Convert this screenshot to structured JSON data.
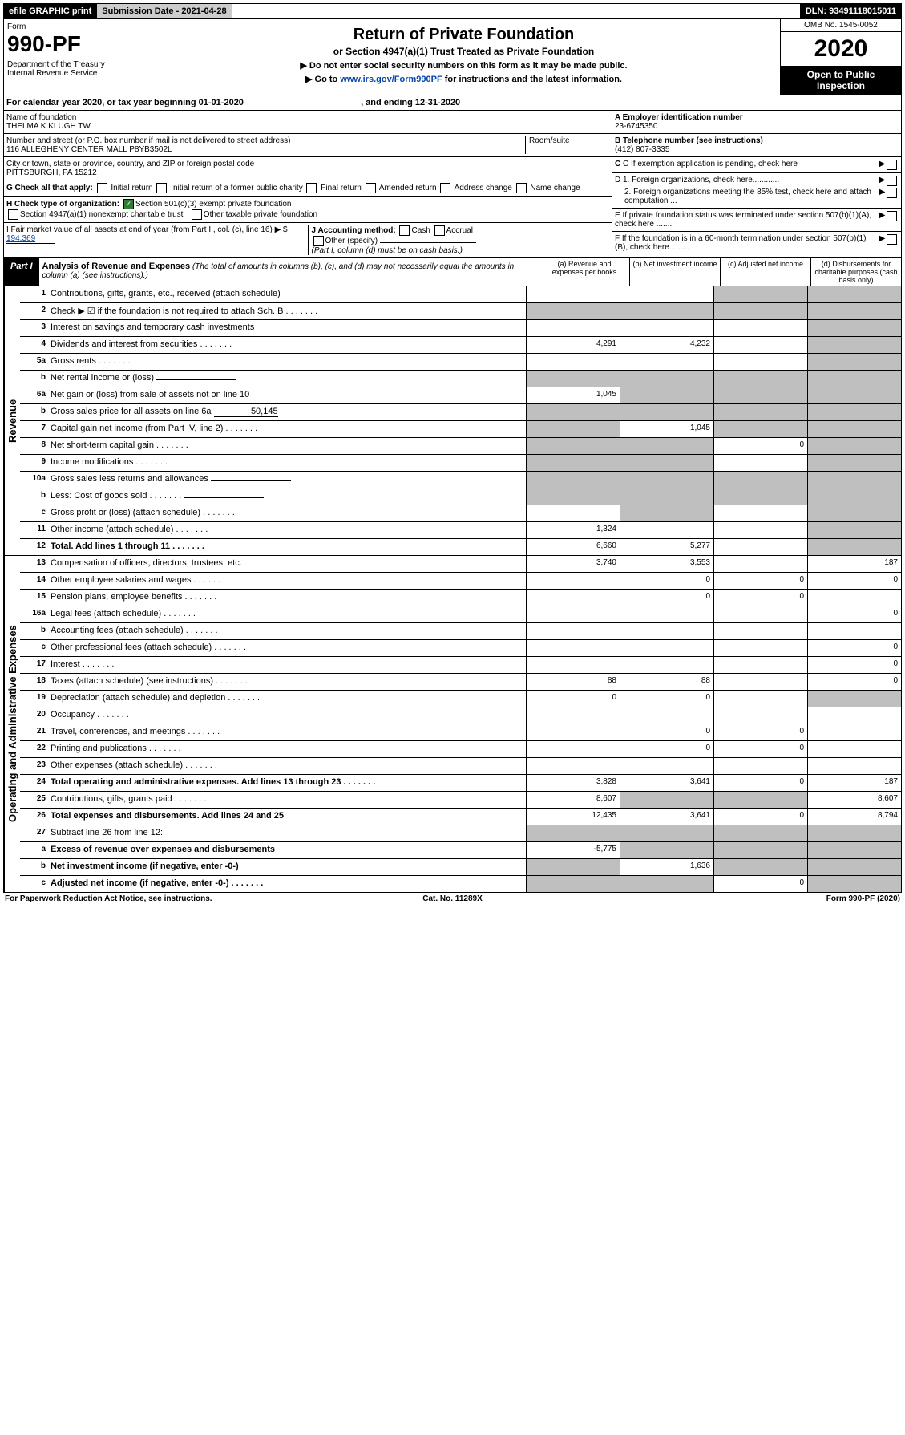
{
  "top": {
    "efile": "efile GRAPHIC print",
    "subdate_lbl": "Submission Date - 2021-04-28",
    "dln": "DLN: 93491118015011"
  },
  "header": {
    "form": "Form",
    "formnum": "990-PF",
    "dept": "Department of the Treasury\nInternal Revenue Service",
    "title": "Return of Private Foundation",
    "subtitle": "or Section 4947(a)(1) Trust Treated as Private Foundation",
    "instr1": "▶ Do not enter social security numbers on this form as it may be made public.",
    "instr2_pre": "▶ Go to ",
    "instr2_link": "www.irs.gov/Form990PF",
    "instr2_post": " for instructions and the latest information.",
    "omb": "OMB No. 1545-0052",
    "year": "2020",
    "open": "Open to Public Inspection"
  },
  "cy": {
    "pre": "For calendar year 2020, or tax year beginning ",
    "b": "01-01-2020",
    "mid": " , and ending ",
    "e": "12-31-2020"
  },
  "name": {
    "lbl": "Name of foundation",
    "val": "THELMA K KLUGH TW"
  },
  "addr": {
    "lbl": "Number and street (or P.O. box number if mail is not delivered to street address)",
    "room": "Room/suite",
    "val": "116 ALLEGHENY CENTER MALL P8YB3502L"
  },
  "city": {
    "lbl": "City or town, state or province, country, and ZIP or foreign postal code",
    "val": "PITTSBURGH, PA  15212"
  },
  "ein": {
    "lbl": "A Employer identification number",
    "val": "23-6745350"
  },
  "tel": {
    "lbl": "B Telephone number (see instructions)",
    "val": "(412) 807-3335"
  },
  "c": "C If exemption application is pending, check here",
  "d1": "D 1. Foreign organizations, check here............",
  "d2": "2. Foreign organizations meeting the 85% test, check here and attach computation ...",
  "e": "E If private foundation status was terminated under section 507(b)(1)(A), check here .......",
  "f": "F If the foundation is in a 60-month termination under section 507(b)(1)(B), check here ........",
  "g": {
    "lbl": "G Check all that apply:",
    "opts": [
      "Initial return",
      "Initial return of a former public charity",
      "Final return",
      "Amended return",
      "Address change",
      "Name change"
    ]
  },
  "h": {
    "lbl": "H Check type of organization:",
    "opt1": "Section 501(c)(3) exempt private foundation",
    "opt2": "Section 4947(a)(1) nonexempt charitable trust",
    "opt3": "Other taxable private foundation"
  },
  "i": {
    "lbl": "I Fair market value of all assets at end of year (from Part II, col. (c), line 16) ▶ $",
    "val": "194,369"
  },
  "j": {
    "lbl": "J Accounting method:",
    "o1": "Cash",
    "o2": "Accrual",
    "o3": "Other (specify)",
    "note": "(Part I, column (d) must be on cash basis.)"
  },
  "part1": {
    "lbl": "Part I",
    "title": "Analysis of Revenue and Expenses",
    "sub": "(The total of amounts in columns (b), (c), and (d) may not necessarily equal the amounts in column (a) (see instructions).)"
  },
  "cols": {
    "a": "(a) Revenue and expenses per books",
    "b": "(b) Net investment income",
    "c": "(c) Adjusted net income",
    "d": "(d) Disbursements for charitable purposes (cash basis only)"
  },
  "sec": {
    "rev": "Revenue",
    "exp": "Operating and Administrative Expenses"
  },
  "rows": [
    {
      "n": "1",
      "d": "Contributions, gifts, grants, etc., received (attach schedule)",
      "sh": [
        0,
        0,
        1,
        1
      ]
    },
    {
      "n": "2",
      "d": "Check ▶ ☑ if the foundation is not required to attach Sch. B",
      "dots": 1,
      "sh": [
        1,
        1,
        1,
        1
      ]
    },
    {
      "n": "3",
      "d": "Interest on savings and temporary cash investments",
      "sh": [
        0,
        0,
        0,
        1
      ]
    },
    {
      "n": "4",
      "d": "Dividends and interest from securities",
      "dots": 1,
      "a": "4,291",
      "b": "4,232",
      "sh": [
        0,
        0,
        0,
        1
      ]
    },
    {
      "n": "5a",
      "d": "Gross rents",
      "dots": 1,
      "sh": [
        0,
        0,
        0,
        1
      ]
    },
    {
      "n": "b",
      "d": "Net rental income or (loss)",
      "ul": 1,
      "sh": [
        1,
        1,
        1,
        1
      ]
    },
    {
      "n": "6a",
      "d": "Net gain or (loss) from sale of assets not on line 10",
      "a": "1,045",
      "sh": [
        0,
        1,
        1,
        1
      ]
    },
    {
      "n": "b",
      "d": "Gross sales price for all assets on line 6a",
      "ulv": "50,145",
      "sh": [
        1,
        1,
        1,
        1
      ]
    },
    {
      "n": "7",
      "d": "Capital gain net income (from Part IV, line 2)",
      "dots": 1,
      "b": "1,045",
      "sh": [
        1,
        0,
        1,
        1
      ]
    },
    {
      "n": "8",
      "d": "Net short-term capital gain",
      "dots": 1,
      "c": "0",
      "sh": [
        1,
        1,
        0,
        1
      ]
    },
    {
      "n": "9",
      "d": "Income modifications",
      "dots": 1,
      "sh": [
        1,
        1,
        0,
        1
      ]
    },
    {
      "n": "10a",
      "d": "Gross sales less returns and allowances",
      "ul": 1,
      "sh": [
        1,
        1,
        1,
        1
      ]
    },
    {
      "n": "b",
      "d": "Less: Cost of goods sold",
      "dots": 1,
      "ul": 1,
      "sh": [
        1,
        1,
        1,
        1
      ]
    },
    {
      "n": "c",
      "d": "Gross profit or (loss) (attach schedule)",
      "dots": 1,
      "sh": [
        0,
        1,
        0,
        1
      ]
    },
    {
      "n": "11",
      "d": "Other income (attach schedule)",
      "dots": 1,
      "a": "1,324",
      "sh": [
        0,
        0,
        0,
        1
      ]
    },
    {
      "n": "12",
      "d": "Total. Add lines 1 through 11",
      "dots": 1,
      "bold": 1,
      "a": "6,660",
      "b": "5,277",
      "sh": [
        0,
        0,
        0,
        1
      ]
    }
  ],
  "erows": [
    {
      "n": "13",
      "d": "Compensation of officers, directors, trustees, etc.",
      "a": "3,740",
      "b": "3,553",
      "dd": "187"
    },
    {
      "n": "14",
      "d": "Other employee salaries and wages",
      "dots": 1,
      "b": "0",
      "c": "0",
      "dd": "0"
    },
    {
      "n": "15",
      "d": "Pension plans, employee benefits",
      "dots": 1,
      "b": "0",
      "c": "0"
    },
    {
      "n": "16a",
      "d": "Legal fees (attach schedule)",
      "dots": 1,
      "dd": "0"
    },
    {
      "n": "b",
      "d": "Accounting fees (attach schedule)",
      "dots": 1
    },
    {
      "n": "c",
      "d": "Other professional fees (attach schedule)",
      "dots": 1,
      "dd": "0"
    },
    {
      "n": "17",
      "d": "Interest",
      "dots": 1,
      "dd": "0"
    },
    {
      "n": "18",
      "d": "Taxes (attach schedule) (see instructions)",
      "dots": 1,
      "a": "88",
      "b": "88",
      "dd": "0"
    },
    {
      "n": "19",
      "d": "Depreciation (attach schedule) and depletion",
      "dots": 1,
      "a": "0",
      "b": "0",
      "sh": [
        0,
        0,
        0,
        1
      ]
    },
    {
      "n": "20",
      "d": "Occupancy",
      "dots": 1
    },
    {
      "n": "21",
      "d": "Travel, conferences, and meetings",
      "dots": 1,
      "b": "0",
      "c": "0"
    },
    {
      "n": "22",
      "d": "Printing and publications",
      "dots": 1,
      "b": "0",
      "c": "0"
    },
    {
      "n": "23",
      "d": "Other expenses (attach schedule)",
      "dots": 1
    },
    {
      "n": "24",
      "d": "Total operating and administrative expenses. Add lines 13 through 23",
      "dots": 1,
      "bold": 1,
      "a": "3,828",
      "b": "3,641",
      "c": "0",
      "dd": "187"
    },
    {
      "n": "25",
      "d": "Contributions, gifts, grants paid",
      "dots": 1,
      "a": "8,607",
      "dd": "8,607",
      "sh": [
        0,
        1,
        1,
        0
      ]
    },
    {
      "n": "26",
      "d": "Total expenses and disbursements. Add lines 24 and 25",
      "bold": 1,
      "a": "12,435",
      "b": "3,641",
      "c": "0",
      "dd": "8,794"
    },
    {
      "n": "27",
      "d": "Subtract line 26 from line 12:",
      "sh": [
        1,
        1,
        1,
        1
      ]
    },
    {
      "n": "a",
      "d": "Excess of revenue over expenses and disbursements",
      "bold": 1,
      "a": "-5,775",
      "sh": [
        0,
        1,
        1,
        1
      ]
    },
    {
      "n": "b",
      "d": "Net investment income (if negative, enter -0-)",
      "bold": 1,
      "b": "1,636",
      "sh": [
        1,
        0,
        1,
        1
      ]
    },
    {
      "n": "c",
      "d": "Adjusted net income (if negative, enter -0-)",
      "dots": 1,
      "bold": 1,
      "c": "0",
      "sh": [
        1,
        1,
        0,
        1
      ]
    }
  ],
  "footer": {
    "l": "For Paperwork Reduction Act Notice, see instructions.",
    "c": "Cat. No. 11289X",
    "r": "Form 990-PF (2020)"
  }
}
